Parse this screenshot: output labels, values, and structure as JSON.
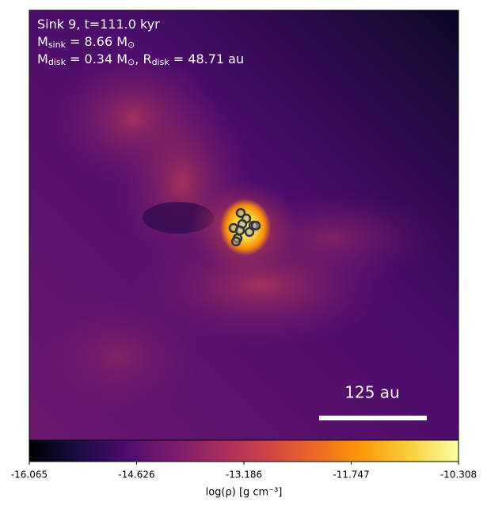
{
  "chart_data": {
    "type": "density-map",
    "annotation_lines": [
      [
        "Sink 9, t=111.0 kyr"
      ],
      [
        "M",
        "sink",
        " = 8.66 M",
        "⊙"
      ],
      [
        "M",
        "disk",
        " = 0.34 M",
        "⊙",
        ", R",
        "disk",
        " = 48.71 au"
      ]
    ],
    "scale_bar_label": "125 au",
    "colormap": "inferno",
    "colorbar_label": "log(ρ) [g cm⁻³]",
    "clim": [
      -16.065,
      -10.308
    ],
    "cticks": [
      -16.065,
      -14.626,
      -13.186,
      -11.747,
      -10.308
    ]
  }
}
